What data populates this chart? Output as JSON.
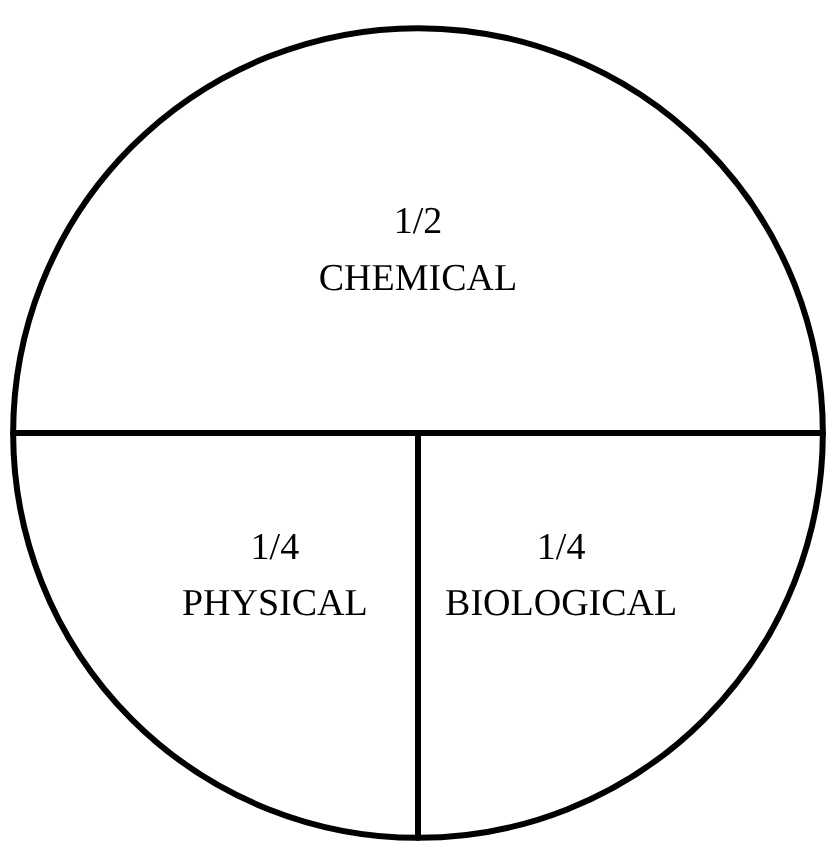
{
  "chart_data": {
    "type": "pie",
    "categories": [
      "CHEMICAL",
      "PHYSICAL",
      "BIOLOGICAL"
    ],
    "values": [
      0.5,
      0.25,
      0.25
    ],
    "value_labels": [
      "1/2",
      "1/4",
      "1/4"
    ],
    "colors": [
      "#ffffff",
      "#ffffff",
      "#ffffff"
    ]
  }
}
